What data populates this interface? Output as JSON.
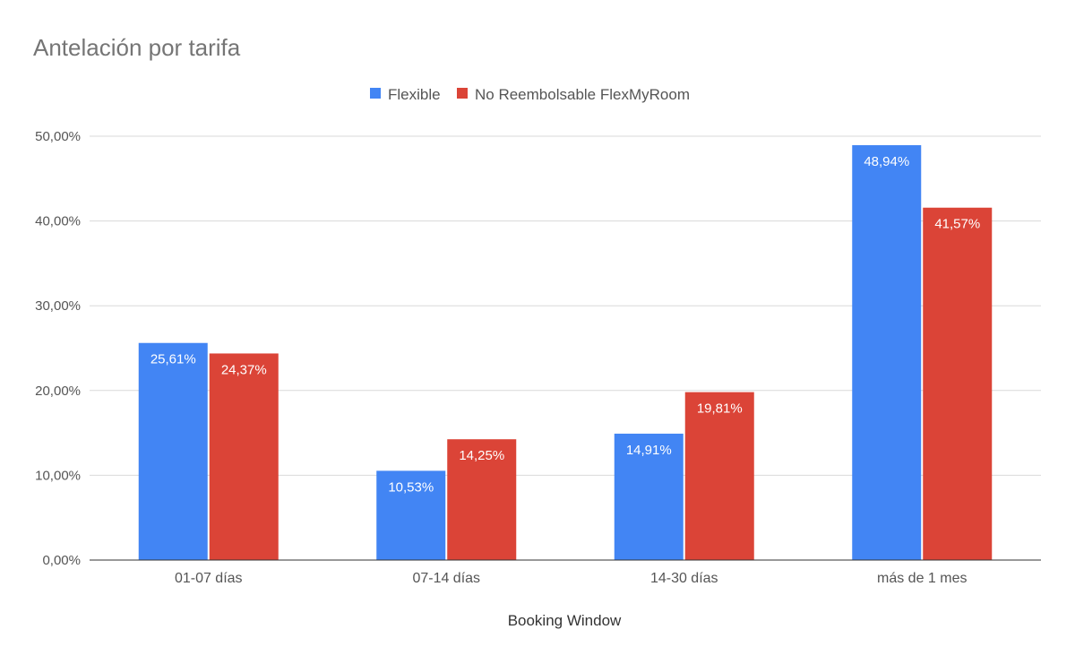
{
  "chart_data": {
    "type": "bar",
    "title": "Antelación por tarifa",
    "xlabel": "Booking Window",
    "ylabel": "",
    "categories": [
      "01-07 días",
      "07-14 días",
      "14-30 días",
      "más de 1 mes"
    ],
    "series": [
      {
        "name": "Flexible",
        "color": "#4285f4",
        "values": [
          25.61,
          10.53,
          14.91,
          48.94
        ],
        "labels": [
          "25,61%",
          "10,53%",
          "14,91%",
          "48,94%"
        ]
      },
      {
        "name": "No Reembolsable FlexMyRoom",
        "color": "#db4437",
        "values": [
          24.37,
          14.25,
          19.81,
          41.57
        ],
        "labels": [
          "24,37%",
          "14,25%",
          "19,81%",
          "41,57%"
        ]
      }
    ],
    "ylim": [
      0,
      50
    ],
    "yticks": [
      0,
      10,
      20,
      30,
      40,
      50
    ],
    "ytick_labels": [
      "0,00%",
      "10,00%",
      "20,00%",
      "30,00%",
      "40,00%",
      "50,00%"
    ],
    "grid": true,
    "legend_position": "top"
  }
}
